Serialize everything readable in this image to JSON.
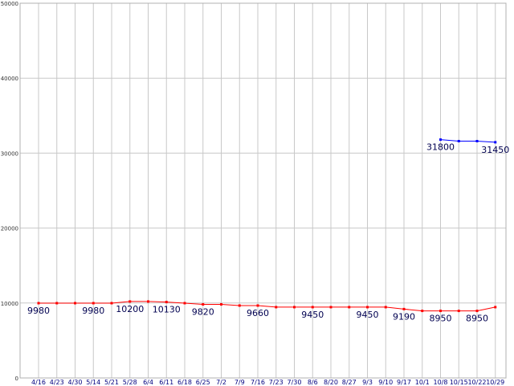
{
  "chart_data": {
    "type": "line",
    "title": "",
    "xlabel": "",
    "ylabel": "",
    "ylim": [
      0,
      50000
    ],
    "yticks": [
      "0",
      "10000",
      "20000",
      "30000",
      "40000",
      "50000"
    ],
    "ytick_values": [
      0,
      10000,
      20000,
      30000,
      40000,
      50000
    ],
    "grid": true,
    "legend": "none",
    "categories": [
      "4/16",
      "4/23",
      "4/30",
      "5/14",
      "5/21",
      "5/28",
      "6/4",
      "6/11",
      "6/18",
      "6/25",
      "7/2",
      "7/9",
      "7/16",
      "7/23",
      "7/30",
      "8/6",
      "8/20",
      "8/27",
      "9/3",
      "9/10",
      "9/17",
      "10/1",
      "10/8",
      "10/15",
      "10/22",
      "10/29"
    ],
    "series": [
      {
        "color": "#ff0000",
        "values": [
          9980,
          9980,
          9980,
          9980,
          9980,
          10200,
          10200,
          10130,
          9980,
          9820,
          9820,
          9660,
          9660,
          9450,
          9450,
          9450,
          9450,
          9450,
          9450,
          9450,
          9190,
          8950,
          8950,
          8950,
          8950,
          9450
        ],
        "labels": [
          {
            "index": 0,
            "text": "9980"
          },
          {
            "index": 3,
            "text": "9980"
          },
          {
            "index": 5,
            "text": "10200"
          },
          {
            "index": 7,
            "text": "10130"
          },
          {
            "index": 9,
            "text": "9820"
          },
          {
            "index": 12,
            "text": "9660"
          },
          {
            "index": 15,
            "text": "9450"
          },
          {
            "index": 18,
            "text": "9450"
          },
          {
            "index": 20,
            "text": "9190"
          },
          {
            "index": 22,
            "text": "8950"
          },
          {
            "index": 24,
            "text": "8950"
          }
        ]
      },
      {
        "color": "#0000ff",
        "values": [
          null,
          null,
          null,
          null,
          null,
          null,
          null,
          null,
          null,
          null,
          null,
          null,
          null,
          null,
          null,
          null,
          null,
          null,
          null,
          null,
          null,
          null,
          31800,
          31600,
          31600,
          31450
        ],
        "labels": [
          {
            "index": 22,
            "text": "31800"
          },
          {
            "index": 25,
            "text": "31450"
          }
        ]
      }
    ]
  }
}
